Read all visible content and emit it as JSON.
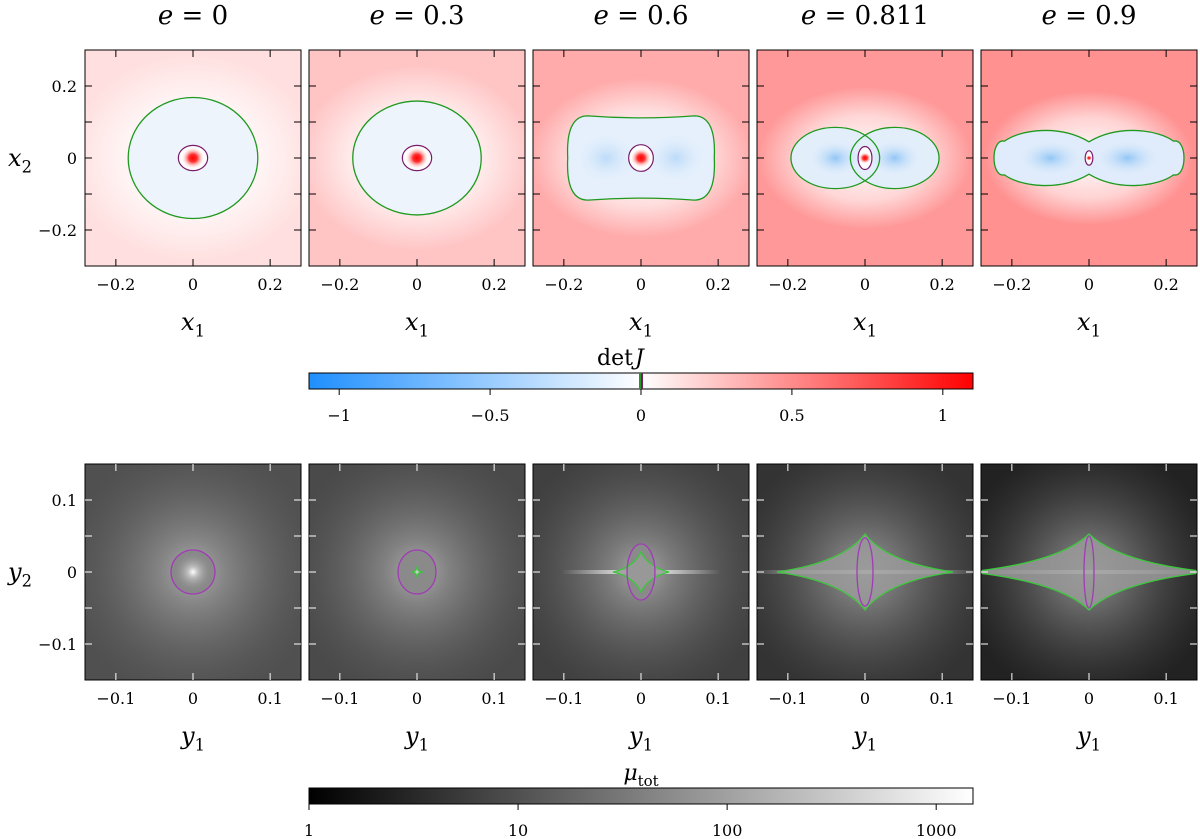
{
  "chart_data": {
    "type": "heatmap",
    "panels_top": [
      {
        "title": "e = 0",
        "e": 0
      },
      {
        "title": "e = 0.3",
        "e": 0.3
      },
      {
        "title": "e = 0.6",
        "e": 0.6
      },
      {
        "title": "e = 0.811",
        "e": 0.811
      },
      {
        "title": "e = 0.9",
        "e": 0.9
      }
    ],
    "top_xlabel": "x1",
    "top_ylabel": "x2",
    "top_xlim": [
      -0.28,
      0.28
    ],
    "top_ylim": [
      -0.3,
      0.3
    ],
    "top_xticks": [
      "−0.2",
      "0",
      "0.2"
    ],
    "top_xtick_values": [
      -0.2,
      0,
      0.2
    ],
    "top_yticks": [
      "−0.2",
      "0",
      "0.2"
    ],
    "top_ytick_values": [
      -0.2,
      0,
      0.2
    ],
    "colorbar_detJ": {
      "label": "det J",
      "range": [
        -1.1,
        1.1
      ],
      "ticks": [
        "−1",
        "−0.5",
        "0",
        "0.5",
        "1"
      ],
      "tick_values": [
        -1,
        -0.5,
        0,
        0.5,
        1
      ],
      "colors": {
        "low": "#1f8fff",
        "mid": "#ffffff",
        "high": "#ff0000"
      }
    },
    "bottom_xlabel": "y1",
    "bottom_ylabel": "y2",
    "bottom_xlim": [
      -0.14,
      0.14
    ],
    "bottom_ylim": [
      -0.15,
      0.15
    ],
    "bottom_xticks": [
      "−0.1",
      "0",
      "0.1"
    ],
    "bottom_xtick_values": [
      -0.1,
      0,
      0.1
    ],
    "bottom_yticks": [
      "−0.1",
      "0",
      "0.1"
    ],
    "bottom_ytick_values": [
      -0.1,
      0,
      0.1
    ],
    "colorbar_mu": {
      "label": "μ_tot",
      "scale": "log",
      "range": [
        1,
        1500
      ],
      "ticks": [
        "1",
        "10",
        "100",
        "1000"
      ],
      "tick_values": [
        1,
        10,
        100,
        1000
      ]
    },
    "curve_colors": {
      "outer_critical": "#1f9a1f",
      "inner_critical": "#7a1a6a"
    },
    "bottom_curve_colors": {
      "caustic": "#3cc83c",
      "inner_caustic": "#a03cb4"
    }
  }
}
